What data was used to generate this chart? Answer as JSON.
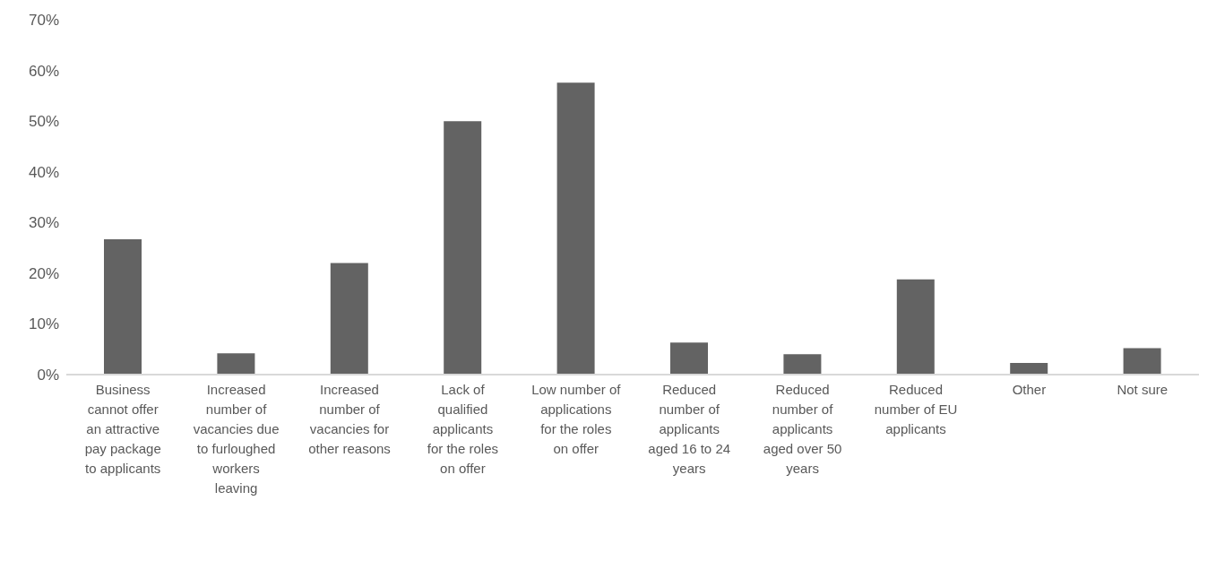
{
  "chart_data": {
    "type": "bar",
    "categories": [
      "Business cannot offer an attractive pay package to applicants",
      "Increased number of vacancies due to furloughed workers leaving",
      "Increased number of vacancies for other reasons",
      "Lack of qualified applicants for the roles on offer",
      "Low number of applications for the roles on offer",
      "Reduced number of applicants aged 16 to 24 years",
      "Reduced number of applicants aged over 50 years",
      "Reduced number of EU applicants",
      "Other",
      "Not sure"
    ],
    "values": [
      26.7,
      4.2,
      22.0,
      50.0,
      57.6,
      6.3,
      4.0,
      18.8,
      2.3,
      5.2
    ],
    "color": "#636363",
    "ylim": [
      0,
      70
    ],
    "yticks": [
      {
        "value": 0,
        "label": "0%"
      },
      {
        "value": 10,
        "label": "10%"
      },
      {
        "value": 20,
        "label": "20%"
      },
      {
        "value": 30,
        "label": "30%"
      },
      {
        "value": 40,
        "label": "40%"
      },
      {
        "value": 50,
        "label": "50%"
      },
      {
        "value": 60,
        "label": "60%"
      },
      {
        "value": 70,
        "label": "70%"
      }
    ],
    "grid": false,
    "legend": false
  }
}
